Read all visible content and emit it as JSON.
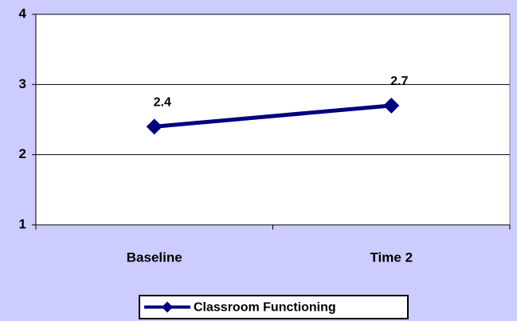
{
  "chart_data": {
    "type": "line",
    "categories": [
      "Baseline",
      "Time 2"
    ],
    "series": [
      {
        "name": "Classroom Functioning",
        "color": "#000080",
        "values": [
          2.4,
          2.7
        ]
      }
    ],
    "ylim": [
      1,
      4
    ],
    "yticks": [
      1,
      2,
      3,
      4
    ],
    "grid": true,
    "legend": "bottom",
    "data_labels": true
  }
}
